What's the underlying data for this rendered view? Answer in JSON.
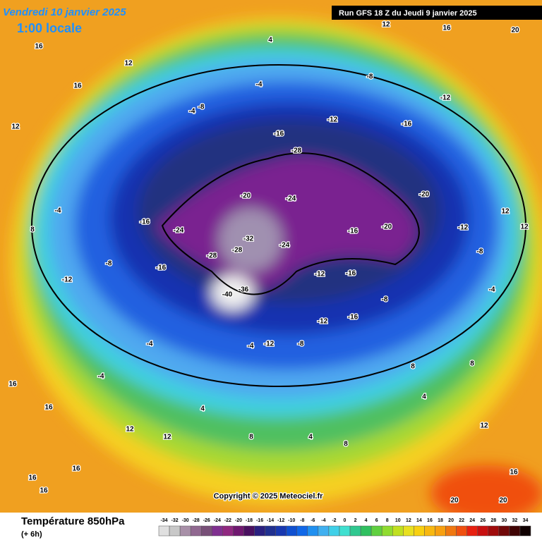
{
  "header": {
    "date": "Vendredi 10 janvier 2025",
    "time": "1:00 locale",
    "run": "Run GFS 18 Z du Jeudi 9 janvier 2025"
  },
  "copyright": "Copyright © 2025 Meteociel.fr",
  "legend": {
    "title": "Température 850hPa",
    "lead": "(+ 6h)",
    "ticks": [
      -34,
      -32,
      -30,
      -28,
      -26,
      -24,
      -22,
      -20,
      -18,
      -16,
      -14,
      -12,
      -10,
      -8,
      -6,
      -4,
      -2,
      0,
      2,
      4,
      6,
      8,
      10,
      12,
      14,
      16,
      18,
      20,
      22,
      24,
      26,
      28,
      30,
      32,
      34
    ],
    "colors": [
      "#e0e0e0",
      "#c8c8c8",
      "#a890a8",
      "#906890",
      "#785078",
      "#803090",
      "#902880",
      "#701870",
      "#4a1060",
      "#2a2080",
      "#203090",
      "#1838b0",
      "#1050d0",
      "#1068e8",
      "#2090f0",
      "#40b0f0",
      "#40d0e8",
      "#40e0d0",
      "#30c890",
      "#30c060",
      "#60d040",
      "#90dc30",
      "#c0e020",
      "#e8e020",
      "#f8d010",
      "#f8b810",
      "#f8a010",
      "#f07810",
      "#f05010",
      "#e82010",
      "#c81010",
      "#a00c0c",
      "#700808",
      "#400404",
      "#100000"
    ]
  },
  "map_labels": [
    12,
    16,
    20,
    16,
    12,
    16,
    4,
    -8,
    -12,
    -16,
    -12,
    -4,
    -8,
    -4,
    -28,
    -16,
    -20,
    -24,
    -20,
    -20,
    -16,
    -24,
    -32,
    -28,
    -28,
    -40,
    -36,
    -16,
    -24,
    -16,
    -8,
    -12,
    -4,
    8,
    -4,
    -4,
    -4,
    -12,
    -8,
    -12,
    -16,
    -12,
    -16,
    -8,
    -12,
    -8,
    -4,
    12,
    12,
    8,
    4,
    8,
    12,
    16,
    20,
    20,
    12,
    12,
    16,
    16,
    16,
    4,
    8,
    4,
    8,
    12,
    16,
    16
  ]
}
